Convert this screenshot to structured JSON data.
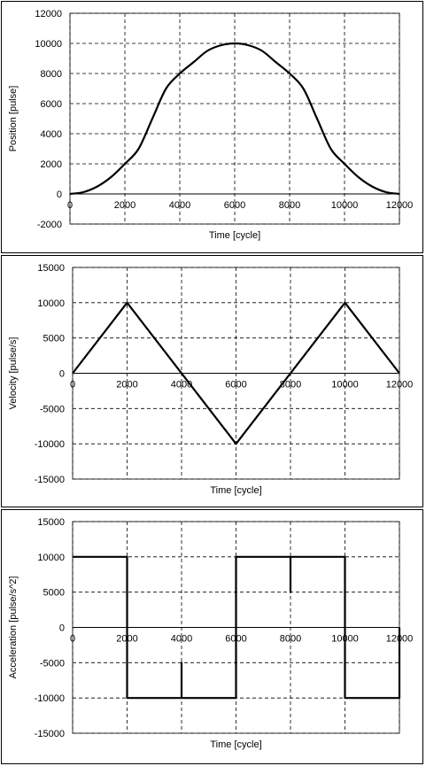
{
  "chart_data": [
    {
      "type": "line",
      "xlabel": "Time [cycle]",
      "ylabel": "Position [pulse]",
      "xlim": [
        0,
        12000
      ],
      "ylim": [
        -2000,
        12000
      ],
      "xticks": [
        0,
        2000,
        4000,
        6000,
        8000,
        10000,
        12000
      ],
      "yticks": [
        -2000,
        0,
        2000,
        4000,
        6000,
        8000,
        10000,
        12000
      ],
      "x_tick_labels_position": "y=0",
      "grid": true,
      "series": [
        {
          "x": [
            0,
            500,
            1000,
            1500,
            2000,
            2500,
            3000,
            3500,
            4000,
            4500,
            5000,
            5500,
            6000,
            6500,
            7000,
            7500,
            8000,
            8500,
            9000,
            9500,
            10000,
            10500,
            11000,
            11500,
            12000
          ],
          "y": [
            0,
            125,
            500,
            1125,
            2000,
            3000,
            5000,
            7000,
            8000,
            8750,
            9500,
            9875,
            10000,
            9875,
            9500,
            8750,
            8000,
            7000,
            5000,
            3000,
            2000,
            1125,
            500,
            125,
            0
          ]
        }
      ]
    },
    {
      "type": "line",
      "xlabel": "Time [cycle]",
      "ylabel": "Velocity [pulse/s]",
      "xlim": [
        0,
        12000
      ],
      "ylim": [
        -15000,
        15000
      ],
      "xticks": [
        0,
        2000,
        4000,
        6000,
        8000,
        10000,
        12000
      ],
      "yticks": [
        -15000,
        -10000,
        -5000,
        0,
        5000,
        10000,
        15000
      ],
      "x_tick_labels_position": "y=0",
      "grid": true,
      "series": [
        {
          "x": [
            0,
            2000,
            6000,
            10000,
            12000
          ],
          "y": [
            0,
            10000,
            -10000,
            10000,
            0
          ]
        }
      ]
    },
    {
      "type": "line",
      "xlabel": "Time [cycle]",
      "ylabel": "Acceleration [pulse/s^2]",
      "xlim": [
        0,
        12000
      ],
      "ylim": [
        -15000,
        15000
      ],
      "xticks": [
        0,
        2000,
        4000,
        6000,
        8000,
        10000,
        12000
      ],
      "yticks": [
        -15000,
        -10000,
        -5000,
        0,
        5000,
        10000,
        15000
      ],
      "x_tick_labels_position": "y=0",
      "grid": true,
      "series": [
        {
          "x": [
            0,
            2000,
            2000,
            4000,
            4000,
            4000,
            6000,
            6000,
            8000,
            8000,
            8000,
            10000,
            10000,
            12000,
            12000
          ],
          "y": [
            10000,
            10000,
            -10000,
            -10000,
            -5000,
            -10000,
            -10000,
            10000,
            10000,
            5000,
            10000,
            10000,
            -10000,
            -10000,
            0
          ]
        }
      ]
    }
  ]
}
